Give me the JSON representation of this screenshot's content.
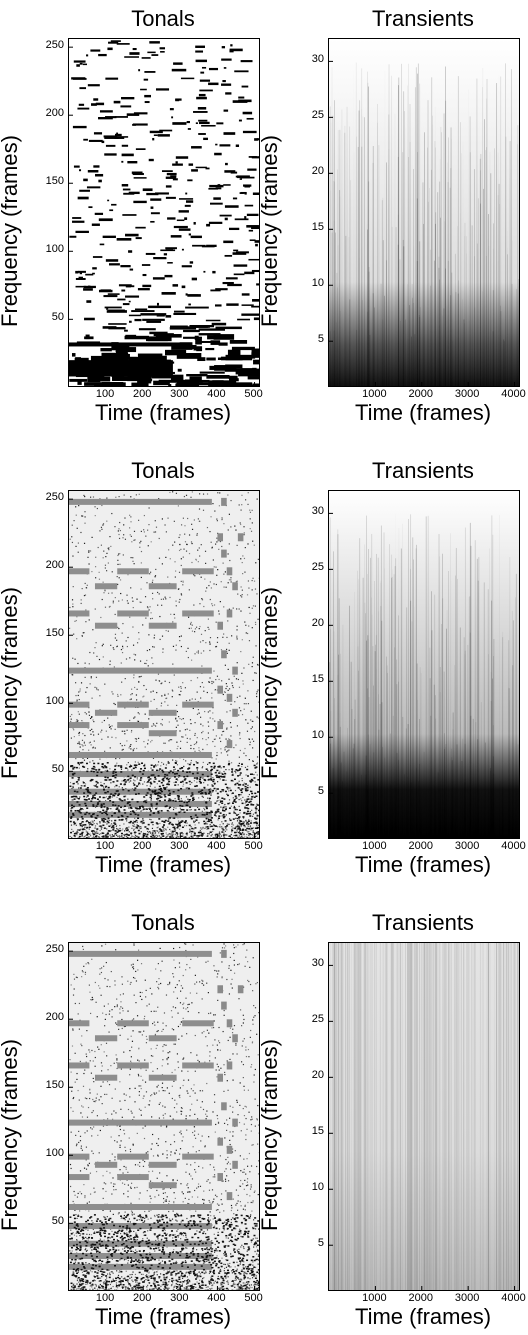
{
  "chart_data": [
    {
      "type": "heatmap",
      "title": "Tonals",
      "xlabel": "Time (frames)",
      "ylabel": "Frequency (frames)",
      "xlim": [
        0,
        512
      ],
      "ylim": [
        1,
        256
      ],
      "xticks": [
        100,
        200,
        300,
        400,
        500
      ],
      "yticks": [
        50,
        100,
        150,
        200,
        250
      ],
      "colormap": "white-to-black",
      "style": "sparse-black"
    },
    {
      "type": "heatmap",
      "title": "Transients",
      "xlabel": "Time (frames)",
      "ylabel": "Frequency (frames)",
      "xlim": [
        0,
        4096
      ],
      "ylim": [
        1,
        32
      ],
      "xticks": [
        1000,
        2000,
        3000,
        4000
      ],
      "yticks": [
        5,
        10,
        15,
        20,
        25,
        30
      ],
      "colormap": "white-to-black",
      "style": "dark-bottom"
    },
    {
      "type": "heatmap",
      "title": "Tonals",
      "xlabel": "Time (frames)",
      "ylabel": "Frequency (frames)",
      "xlim": [
        0,
        512
      ],
      "ylim": [
        1,
        256
      ],
      "xticks": [
        100,
        200,
        300,
        400,
        500
      ],
      "yticks": [
        50,
        100,
        150,
        200,
        250
      ],
      "colormap": "white-to-black",
      "style": "gray-bands"
    },
    {
      "type": "heatmap",
      "title": "Transients",
      "xlabel": "Time (frames)",
      "ylabel": "Frequency (frames)",
      "xlim": [
        0,
        4096
      ],
      "ylim": [
        1,
        32
      ],
      "xticks": [
        1000,
        2000,
        3000,
        4000
      ],
      "yticks": [
        5,
        10,
        15,
        20,
        25,
        30
      ],
      "colormap": "white-to-black",
      "style": "very-dark-bottom"
    },
    {
      "type": "heatmap",
      "title": "Tonals",
      "xlabel": "Time (frames)",
      "ylabel": "Frequency (frames)",
      "xlim": [
        0,
        512
      ],
      "ylim": [
        1,
        256
      ],
      "xticks": [
        100,
        200,
        300,
        400,
        500
      ],
      "yticks": [
        50,
        100,
        150,
        200,
        250
      ],
      "colormap": "white-to-black",
      "style": "gray-bands"
    },
    {
      "type": "heatmap",
      "title": "Transients",
      "xlabel": "Time (frames)",
      "ylabel": "Frequency (frames)",
      "xlim": [
        0,
        4096
      ],
      "ylim": [
        1,
        32
      ],
      "xticks": [
        1000,
        2000,
        3000,
        4000
      ],
      "yticks": [
        5,
        10,
        15,
        20,
        25,
        30
      ],
      "colormap": "white-to-black",
      "style": "light-gray"
    }
  ]
}
